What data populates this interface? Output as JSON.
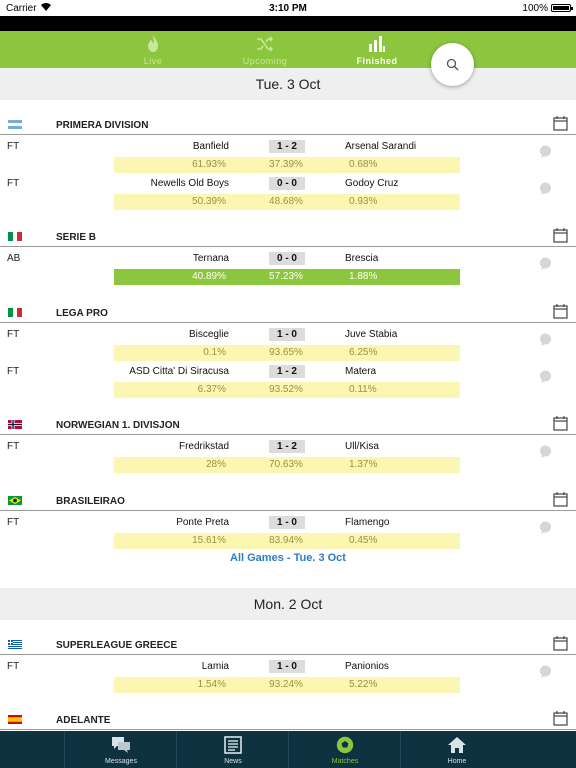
{
  "status_bar": {
    "carrier": "Carrier",
    "time": "3:10 PM",
    "battery": "100%"
  },
  "tabs": [
    {
      "label": "Live",
      "icon": "flame-icon",
      "active": false
    },
    {
      "label": "Upcoming",
      "icon": "shuffle-icon",
      "active": false
    },
    {
      "label": "Finished",
      "icon": "bar-chart-icon",
      "active": true
    }
  ],
  "search_icon": "search-icon",
  "days": [
    {
      "title": "Tue. 3 Oct",
      "leagues": [
        {
          "name": "PRIMERA DIVISION",
          "flag": "argentina-flag-icon",
          "matches": [
            {
              "status": "FT",
              "home": "Banfield",
              "score": "1 - 2",
              "away": "Arsenal Sarandi",
              "odds": [
                "61.93%",
                "37.39%",
                "0.68%"
              ]
            },
            {
              "status": "FT",
              "home": "Newells Old Boys",
              "score": "0 - 0",
              "away": "Godoy Cruz",
              "odds": [
                "50.39%",
                "48.68%",
                "0.93%"
              ]
            }
          ]
        },
        {
          "name": "SERIE B",
          "flag": "italy-flag-icon",
          "matches": [
            {
              "status": "AB",
              "home": "Ternana",
              "score": "0 - 0",
              "away": "Brescia",
              "odds": [
                "40.89%",
                "57.23%",
                "1.88%"
              ],
              "highlighted": true
            }
          ]
        },
        {
          "name": "LEGA PRO",
          "flag": "italy-flag-icon",
          "matches": [
            {
              "status": "FT",
              "home": "Bisceglie",
              "score": "1 - 0",
              "away": "Juve Stabia",
              "odds": [
                "0.1%",
                "93.65%",
                "6.25%"
              ]
            },
            {
              "status": "FT",
              "home": "ASD Citta' Di Siracusa",
              "score": "1 - 2",
              "away": "Matera",
              "odds": [
                "6.37%",
                "93.52%",
                "0.11%"
              ]
            }
          ]
        },
        {
          "name": "NORWEGIAN 1. DIVISJON",
          "flag": "norway-flag-icon",
          "matches": [
            {
              "status": "FT",
              "home": "Fredrikstad",
              "score": "1 - 2",
              "away": "Ull/Kisa",
              "odds": [
                "28%",
                "70.63%",
                "1.37%"
              ]
            }
          ]
        },
        {
          "name": "BRASILEIRAO",
          "flag": "brazil-flag-icon",
          "matches": [
            {
              "status": "FT",
              "home": "Ponte Preta",
              "score": "1 - 0",
              "away": "Flamengo",
              "odds": [
                "15.61%",
                "83.94%",
                "0.45%"
              ]
            }
          ]
        }
      ],
      "all_games_link": "All Games - Tue. 3 Oct"
    },
    {
      "title": "Mon. 2 Oct",
      "leagues": [
        {
          "name": "SUPERLEAGUE GREECE",
          "flag": "greece-flag-icon",
          "matches": [
            {
              "status": "FT",
              "home": "Lamia",
              "score": "1 - 0",
              "away": "Panionios",
              "odds": [
                "1.54%",
                "93.24%",
                "5.22%"
              ]
            }
          ]
        },
        {
          "name": "ADELANTE",
          "flag": "spain-flag-icon",
          "matches": []
        }
      ]
    }
  ],
  "bottom_nav": [
    {
      "label": "Messages",
      "icon": "messages-icon",
      "active": false
    },
    {
      "label": "News",
      "icon": "news-icon",
      "active": false
    },
    {
      "label": "Matches",
      "icon": "soccer-ball-icon",
      "active": true
    },
    {
      "label": "Home",
      "icon": "home-icon",
      "active": false
    }
  ],
  "colors": {
    "accent": "#8cc63f",
    "odds_bg": "#fbf6b1",
    "nav_bg": "#0e3240",
    "link": "#2b7fbf"
  }
}
